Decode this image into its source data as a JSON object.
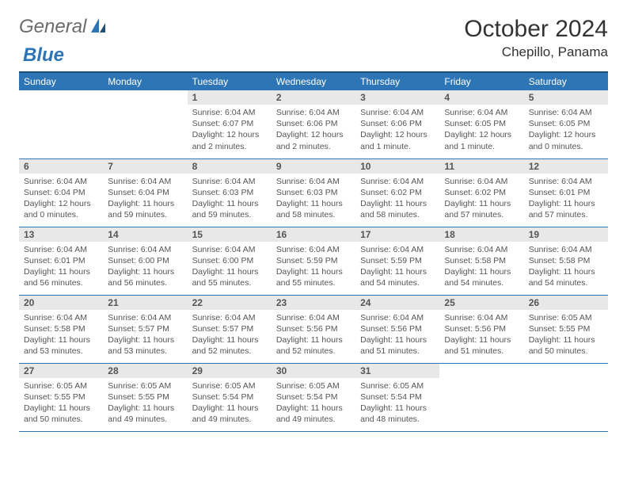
{
  "logo": {
    "general": "General",
    "blue": "Blue"
  },
  "title": "October 2024",
  "location": "Chepillo, Panama",
  "colors": {
    "header_bg": "#2e75b6",
    "header_border": "#1f4e79",
    "daynum_bg": "#e8e8e8",
    "text_main": "#555555",
    "row_border": "#2e75b6"
  },
  "weekdays": [
    "Sunday",
    "Monday",
    "Tuesday",
    "Wednesday",
    "Thursday",
    "Friday",
    "Saturday"
  ],
  "weeks": [
    [
      null,
      null,
      {
        "n": "1",
        "sr": "Sunrise: 6:04 AM",
        "ss": "Sunset: 6:07 PM",
        "dl": "Daylight: 12 hours and 2 minutes."
      },
      {
        "n": "2",
        "sr": "Sunrise: 6:04 AM",
        "ss": "Sunset: 6:06 PM",
        "dl": "Daylight: 12 hours and 2 minutes."
      },
      {
        "n": "3",
        "sr": "Sunrise: 6:04 AM",
        "ss": "Sunset: 6:06 PM",
        "dl": "Daylight: 12 hours and 1 minute."
      },
      {
        "n": "4",
        "sr": "Sunrise: 6:04 AM",
        "ss": "Sunset: 6:05 PM",
        "dl": "Daylight: 12 hours and 1 minute."
      },
      {
        "n": "5",
        "sr": "Sunrise: 6:04 AM",
        "ss": "Sunset: 6:05 PM",
        "dl": "Daylight: 12 hours and 0 minutes."
      }
    ],
    [
      {
        "n": "6",
        "sr": "Sunrise: 6:04 AM",
        "ss": "Sunset: 6:04 PM",
        "dl": "Daylight: 12 hours and 0 minutes."
      },
      {
        "n": "7",
        "sr": "Sunrise: 6:04 AM",
        "ss": "Sunset: 6:04 PM",
        "dl": "Daylight: 11 hours and 59 minutes."
      },
      {
        "n": "8",
        "sr": "Sunrise: 6:04 AM",
        "ss": "Sunset: 6:03 PM",
        "dl": "Daylight: 11 hours and 59 minutes."
      },
      {
        "n": "9",
        "sr": "Sunrise: 6:04 AM",
        "ss": "Sunset: 6:03 PM",
        "dl": "Daylight: 11 hours and 58 minutes."
      },
      {
        "n": "10",
        "sr": "Sunrise: 6:04 AM",
        "ss": "Sunset: 6:02 PM",
        "dl": "Daylight: 11 hours and 58 minutes."
      },
      {
        "n": "11",
        "sr": "Sunrise: 6:04 AM",
        "ss": "Sunset: 6:02 PM",
        "dl": "Daylight: 11 hours and 57 minutes."
      },
      {
        "n": "12",
        "sr": "Sunrise: 6:04 AM",
        "ss": "Sunset: 6:01 PM",
        "dl": "Daylight: 11 hours and 57 minutes."
      }
    ],
    [
      {
        "n": "13",
        "sr": "Sunrise: 6:04 AM",
        "ss": "Sunset: 6:01 PM",
        "dl": "Daylight: 11 hours and 56 minutes."
      },
      {
        "n": "14",
        "sr": "Sunrise: 6:04 AM",
        "ss": "Sunset: 6:00 PM",
        "dl": "Daylight: 11 hours and 56 minutes."
      },
      {
        "n": "15",
        "sr": "Sunrise: 6:04 AM",
        "ss": "Sunset: 6:00 PM",
        "dl": "Daylight: 11 hours and 55 minutes."
      },
      {
        "n": "16",
        "sr": "Sunrise: 6:04 AM",
        "ss": "Sunset: 5:59 PM",
        "dl": "Daylight: 11 hours and 55 minutes."
      },
      {
        "n": "17",
        "sr": "Sunrise: 6:04 AM",
        "ss": "Sunset: 5:59 PM",
        "dl": "Daylight: 11 hours and 54 minutes."
      },
      {
        "n": "18",
        "sr": "Sunrise: 6:04 AM",
        "ss": "Sunset: 5:58 PM",
        "dl": "Daylight: 11 hours and 54 minutes."
      },
      {
        "n": "19",
        "sr": "Sunrise: 6:04 AM",
        "ss": "Sunset: 5:58 PM",
        "dl": "Daylight: 11 hours and 54 minutes."
      }
    ],
    [
      {
        "n": "20",
        "sr": "Sunrise: 6:04 AM",
        "ss": "Sunset: 5:58 PM",
        "dl": "Daylight: 11 hours and 53 minutes."
      },
      {
        "n": "21",
        "sr": "Sunrise: 6:04 AM",
        "ss": "Sunset: 5:57 PM",
        "dl": "Daylight: 11 hours and 53 minutes."
      },
      {
        "n": "22",
        "sr": "Sunrise: 6:04 AM",
        "ss": "Sunset: 5:57 PM",
        "dl": "Daylight: 11 hours and 52 minutes."
      },
      {
        "n": "23",
        "sr": "Sunrise: 6:04 AM",
        "ss": "Sunset: 5:56 PM",
        "dl": "Daylight: 11 hours and 52 minutes."
      },
      {
        "n": "24",
        "sr": "Sunrise: 6:04 AM",
        "ss": "Sunset: 5:56 PM",
        "dl": "Daylight: 11 hours and 51 minutes."
      },
      {
        "n": "25",
        "sr": "Sunrise: 6:04 AM",
        "ss": "Sunset: 5:56 PM",
        "dl": "Daylight: 11 hours and 51 minutes."
      },
      {
        "n": "26",
        "sr": "Sunrise: 6:05 AM",
        "ss": "Sunset: 5:55 PM",
        "dl": "Daylight: 11 hours and 50 minutes."
      }
    ],
    [
      {
        "n": "27",
        "sr": "Sunrise: 6:05 AM",
        "ss": "Sunset: 5:55 PM",
        "dl": "Daylight: 11 hours and 50 minutes."
      },
      {
        "n": "28",
        "sr": "Sunrise: 6:05 AM",
        "ss": "Sunset: 5:55 PM",
        "dl": "Daylight: 11 hours and 49 minutes."
      },
      {
        "n": "29",
        "sr": "Sunrise: 6:05 AM",
        "ss": "Sunset: 5:54 PM",
        "dl": "Daylight: 11 hours and 49 minutes."
      },
      {
        "n": "30",
        "sr": "Sunrise: 6:05 AM",
        "ss": "Sunset: 5:54 PM",
        "dl": "Daylight: 11 hours and 49 minutes."
      },
      {
        "n": "31",
        "sr": "Sunrise: 6:05 AM",
        "ss": "Sunset: 5:54 PM",
        "dl": "Daylight: 11 hours and 48 minutes."
      },
      null,
      null
    ]
  ]
}
